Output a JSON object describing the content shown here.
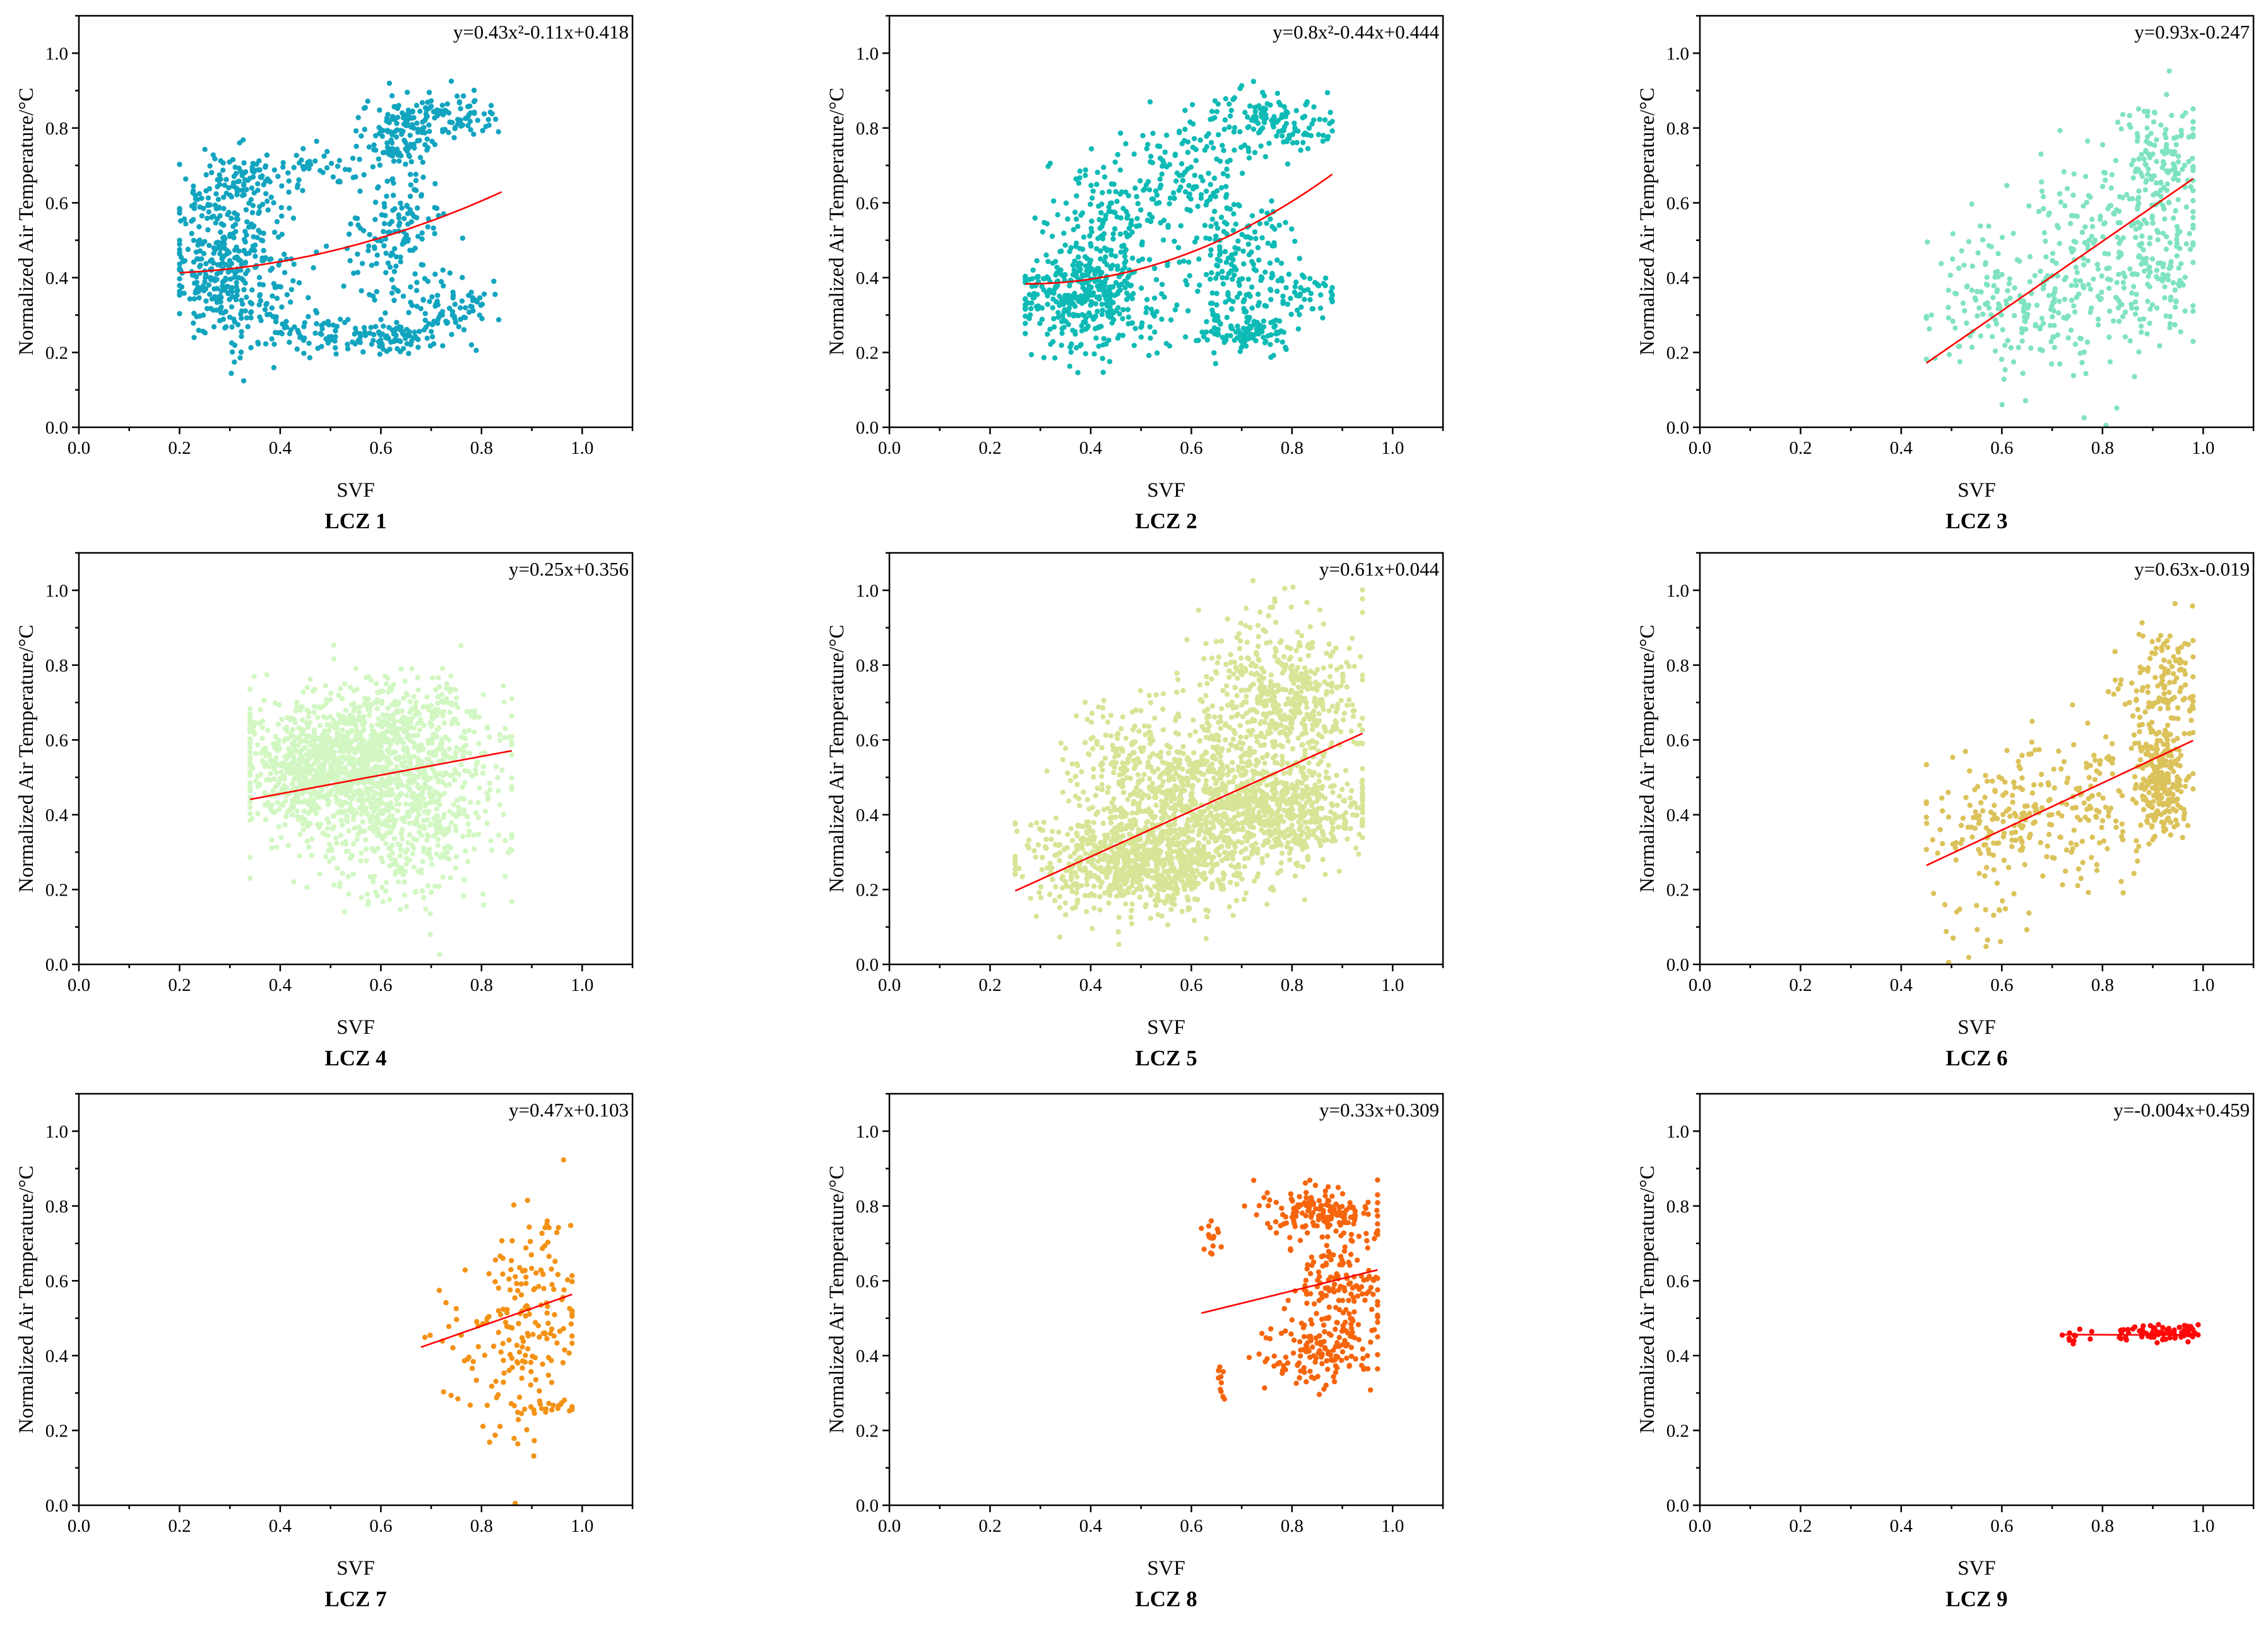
{
  "chart_data": [
    {
      "type": "scatter",
      "title": "LCZ 1",
      "xlabel": "SVF",
      "ylabel": "Normalized Air Temperature/°C",
      "xlim": [
        0,
        1.1
      ],
      "ylim": [
        0,
        1.1
      ],
      "xticks": [
        0.0,
        0.2,
        0.4,
        0.6,
        0.8,
        1.0
      ],
      "yticks": [
        0.0,
        0.2,
        0.4,
        0.6,
        0.8,
        1.0
      ],
      "equation": "y=0.43x²-0.11x+0.418",
      "fit": {
        "kind": "quadratic",
        "a": 0.43,
        "b": -0.11,
        "c": 0.418,
        "x_range": [
          0.2,
          0.84
        ]
      },
      "color": "#12A4BF",
      "x_range": [
        0.2,
        0.84
      ],
      "clusters": [
        {
          "cx": 0.3,
          "cy": 0.43,
          "sx": 0.06,
          "sy": 0.1,
          "n": 380
        },
        {
          "cx": 0.31,
          "cy": 0.64,
          "sx": 0.05,
          "sy": 0.05,
          "n": 90
        },
        {
          "cx": 0.45,
          "cy": 0.7,
          "sx": 0.08,
          "sy": 0.03,
          "n": 50
        },
        {
          "cx": 0.45,
          "cy": 0.26,
          "sx": 0.07,
          "sy": 0.03,
          "n": 60
        },
        {
          "cx": 0.64,
          "cy": 0.78,
          "sx": 0.04,
          "sy": 0.05,
          "n": 110
        },
        {
          "cx": 0.74,
          "cy": 0.83,
          "sx": 0.05,
          "sy": 0.03,
          "n": 90
        },
        {
          "cx": 0.63,
          "cy": 0.5,
          "sx": 0.05,
          "sy": 0.1,
          "n": 150
        },
        {
          "cx": 0.62,
          "cy": 0.24,
          "sx": 0.05,
          "sy": 0.02,
          "n": 90
        },
        {
          "cx": 0.74,
          "cy": 0.33,
          "sx": 0.05,
          "sy": 0.04,
          "n": 70
        }
      ]
    },
    {
      "type": "scatter",
      "title": "LCZ 2",
      "xlabel": "SVF",
      "ylabel": "Normalized Air Temperature/°C",
      "xlim": [
        0,
        1.1
      ],
      "ylim": [
        0,
        1.1
      ],
      "xticks": [
        0.0,
        0.2,
        0.4,
        0.6,
        0.8,
        1.0
      ],
      "yticks": [
        0.0,
        0.2,
        0.4,
        0.6,
        0.8,
        1.0
      ],
      "equation": "y=0.8x²-0.44x+0.444",
      "fit": {
        "kind": "quadratic",
        "a": 0.8,
        "b": -0.44,
        "c": 0.444,
        "x_range": [
          0.27,
          0.88
        ]
      },
      "color": "#0DBAB5",
      "x_range": [
        0.27,
        0.88
      ],
      "clusters": [
        {
          "cx": 0.4,
          "cy": 0.36,
          "sx": 0.07,
          "sy": 0.08,
          "n": 420
        },
        {
          "cx": 0.44,
          "cy": 0.58,
          "sx": 0.06,
          "sy": 0.08,
          "n": 130
        },
        {
          "cx": 0.6,
          "cy": 0.7,
          "sx": 0.05,
          "sy": 0.08,
          "n": 110
        },
        {
          "cx": 0.76,
          "cy": 0.82,
          "sx": 0.06,
          "sy": 0.04,
          "n": 130
        },
        {
          "cx": 0.68,
          "cy": 0.45,
          "sx": 0.05,
          "sy": 0.1,
          "n": 160
        },
        {
          "cx": 0.7,
          "cy": 0.26,
          "sx": 0.05,
          "sy": 0.03,
          "n": 110
        },
        {
          "cx": 0.8,
          "cy": 0.36,
          "sx": 0.05,
          "sy": 0.03,
          "n": 60
        }
      ]
    },
    {
      "type": "scatter",
      "title": "LCZ 3",
      "xlabel": "SVF",
      "ylabel": "Normalized Air Temperature/°C",
      "xlim": [
        0,
        1.1
      ],
      "ylim": [
        0,
        1.1
      ],
      "xticks": [
        0.0,
        0.2,
        0.4,
        0.6,
        0.8,
        1.0
      ],
      "yticks": [
        0.0,
        0.2,
        0.4,
        0.6,
        0.8,
        1.0
      ],
      "equation": "y=0.93x-0.247",
      "fit": {
        "kind": "linear",
        "a": 0.93,
        "b": -0.247,
        "x_range": [
          0.45,
          0.98
        ]
      },
      "color": "#7FE3C0",
      "x_range": [
        0.45,
        0.98
      ],
      "clusters": [
        {
          "cx": 0.6,
          "cy": 0.33,
          "sx": 0.08,
          "sy": 0.12,
          "n": 160
        },
        {
          "cx": 0.78,
          "cy": 0.45,
          "sx": 0.07,
          "sy": 0.14,
          "n": 200
        },
        {
          "cx": 0.92,
          "cy": 0.72,
          "sx": 0.04,
          "sy": 0.08,
          "n": 130
        },
        {
          "cx": 0.92,
          "cy": 0.45,
          "sx": 0.04,
          "sy": 0.1,
          "n": 120
        }
      ]
    },
    {
      "type": "scatter",
      "title": "LCZ 4",
      "xlabel": "SVF",
      "ylabel": "Normalized Air Temperature/°C",
      "xlim": [
        0,
        1.1
      ],
      "ylim": [
        0,
        1.1
      ],
      "xticks": [
        0.0,
        0.2,
        0.4,
        0.6,
        0.8,
        1.0
      ],
      "yticks": [
        0.0,
        0.2,
        0.4,
        0.6,
        0.8,
        1.0
      ],
      "equation": "y=0.25x+0.356",
      "fit": {
        "kind": "linear",
        "a": 0.25,
        "b": 0.356,
        "x_range": [
          0.34,
          0.86
        ]
      },
      "color": "#D2F7C2",
      "x_range": [
        0.34,
        0.86
      ],
      "clusters": [
        {
          "cx": 0.55,
          "cy": 0.55,
          "sx": 0.12,
          "sy": 0.08,
          "n": 900
        },
        {
          "cx": 0.63,
          "cy": 0.38,
          "sx": 0.1,
          "sy": 0.1,
          "n": 500
        },
        {
          "cx": 0.45,
          "cy": 0.5,
          "sx": 0.06,
          "sy": 0.08,
          "n": 250
        },
        {
          "cx": 0.65,
          "cy": 0.68,
          "sx": 0.08,
          "sy": 0.06,
          "n": 150
        }
      ]
    },
    {
      "type": "scatter",
      "title": "LCZ 5",
      "xlabel": "SVF",
      "ylabel": "Normalized Air Temperature/°C",
      "xlim": [
        0,
        1.1
      ],
      "ylim": [
        0,
        1.1
      ],
      "xticks": [
        0.0,
        0.2,
        0.4,
        0.6,
        0.8,
        1.0
      ],
      "yticks": [
        0.0,
        0.2,
        0.4,
        0.6,
        0.8,
        1.0
      ],
      "equation": "y=0.61x+0.044",
      "fit": {
        "kind": "linear",
        "a": 0.61,
        "b": 0.044,
        "x_range": [
          0.25,
          0.94
        ]
      },
      "color": "#D6E596",
      "x_range": [
        0.25,
        0.94
      ],
      "clusters": [
        {
          "cx": 0.5,
          "cy": 0.28,
          "sx": 0.1,
          "sy": 0.07,
          "n": 900
        },
        {
          "cx": 0.65,
          "cy": 0.45,
          "sx": 0.1,
          "sy": 0.1,
          "n": 600
        },
        {
          "cx": 0.8,
          "cy": 0.4,
          "sx": 0.08,
          "sy": 0.06,
          "n": 400
        },
        {
          "cx": 0.78,
          "cy": 0.72,
          "sx": 0.08,
          "sy": 0.1,
          "n": 500
        },
        {
          "cx": 0.5,
          "cy": 0.55,
          "sx": 0.08,
          "sy": 0.08,
          "n": 200
        }
      ]
    },
    {
      "type": "scatter",
      "title": "LCZ 6",
      "xlabel": "SVF",
      "ylabel": "Normalized Air Temperature/°C",
      "xlim": [
        0,
        1.1
      ],
      "ylim": [
        0,
        1.1
      ],
      "xticks": [
        0.0,
        0.2,
        0.4,
        0.6,
        0.8,
        1.0
      ],
      "yticks": [
        0.0,
        0.2,
        0.4,
        0.6,
        0.8,
        1.0
      ],
      "equation": "y=0.63x-0.019",
      "fit": {
        "kind": "linear",
        "a": 0.63,
        "b": -0.019,
        "x_range": [
          0.45,
          0.98
        ]
      },
      "color": "#DCC25A",
      "x_range": [
        0.45,
        0.98
      ],
      "clusters": [
        {
          "cx": 0.6,
          "cy": 0.38,
          "sx": 0.07,
          "sy": 0.09,
          "n": 150
        },
        {
          "cx": 0.78,
          "cy": 0.42,
          "sx": 0.06,
          "sy": 0.12,
          "n": 130
        },
        {
          "cx": 0.92,
          "cy": 0.5,
          "sx": 0.03,
          "sy": 0.08,
          "n": 250
        },
        {
          "cx": 0.91,
          "cy": 0.75,
          "sx": 0.04,
          "sy": 0.07,
          "n": 120
        },
        {
          "cx": 0.57,
          "cy": 0.12,
          "sx": 0.05,
          "sy": 0.05,
          "n": 20
        }
      ]
    },
    {
      "type": "scatter",
      "title": "LCZ 7",
      "xlabel": "SVF",
      "ylabel": "Normalized Air Temperature/°C",
      "xlim": [
        0,
        1.1
      ],
      "ylim": [
        0,
        1.1
      ],
      "xticks": [
        0.0,
        0.2,
        0.4,
        0.6,
        0.8,
        1.0
      ],
      "yticks": [
        0.0,
        0.2,
        0.4,
        0.6,
        0.8,
        1.0
      ],
      "equation": "y=0.47x+0.103",
      "fit": {
        "kind": "linear",
        "a": 0.47,
        "b": 0.103,
        "x_range": [
          0.68,
          0.98
        ]
      },
      "color": "#F39214",
      "x_range": [
        0.68,
        0.98
      ],
      "clusters": [
        {
          "cx": 0.9,
          "cy": 0.5,
          "sx": 0.05,
          "sy": 0.15,
          "n": 150
        },
        {
          "cx": 0.8,
          "cy": 0.45,
          "sx": 0.06,
          "sy": 0.12,
          "n": 50
        },
        {
          "cx": 0.93,
          "cy": 0.26,
          "sx": 0.03,
          "sy": 0.01,
          "n": 20
        }
      ]
    },
    {
      "type": "scatter",
      "title": "LCZ 8",
      "xlabel": "SVF",
      "ylabel": "Normalized Air Temperature/°C",
      "xlim": [
        0,
        1.1
      ],
      "ylim": [
        0,
        1.1
      ],
      "xticks": [
        0.0,
        0.2,
        0.4,
        0.6,
        0.8,
        1.0
      ],
      "yticks": [
        0.0,
        0.2,
        0.4,
        0.6,
        0.8,
        1.0
      ],
      "equation": "y=0.33x+0.309",
      "fit": {
        "kind": "linear",
        "a": 0.33,
        "b": 0.309,
        "x_range": [
          0.62,
          0.97
        ]
      },
      "color": "#F6650C",
      "x_range": [
        0.62,
        0.97
      ],
      "clusters": [
        {
          "cx": 0.86,
          "cy": 0.78,
          "sx": 0.06,
          "sy": 0.03,
          "n": 150
        },
        {
          "cx": 0.9,
          "cy": 0.55,
          "sx": 0.05,
          "sy": 0.1,
          "n": 200
        },
        {
          "cx": 0.84,
          "cy": 0.4,
          "sx": 0.06,
          "sy": 0.04,
          "n": 100
        },
        {
          "cx": 0.64,
          "cy": 0.71,
          "sx": 0.01,
          "sy": 0.02,
          "n": 15
        },
        {
          "cx": 0.66,
          "cy": 0.33,
          "sx": 0.01,
          "sy": 0.03,
          "n": 10
        }
      ]
    },
    {
      "type": "scatter",
      "title": "LCZ 9",
      "xlabel": "SVF",
      "ylabel": "Normalized Air Temperature/°C",
      "xlim": [
        0,
        1.1
      ],
      "ylim": [
        0,
        1.1
      ],
      "xticks": [
        0.0,
        0.2,
        0.4,
        0.6,
        0.8,
        1.0
      ],
      "yticks": [
        0.0,
        0.2,
        0.4,
        0.6,
        0.8,
        1.0
      ],
      "equation": "y=-0.004x+0.459",
      "fit": {
        "kind": "linear",
        "a": -0.004,
        "b": 0.459,
        "x_range": [
          0.72,
          0.99
        ]
      },
      "color": "#FF0A0A",
      "x_range": [
        0.72,
        0.99
      ],
      "clusters": [
        {
          "cx": 0.91,
          "cy": 0.46,
          "sx": 0.04,
          "sy": 0.01,
          "n": 80
        },
        {
          "cx": 0.75,
          "cy": 0.45,
          "sx": 0.02,
          "sy": 0.01,
          "n": 10
        }
      ]
    }
  ]
}
